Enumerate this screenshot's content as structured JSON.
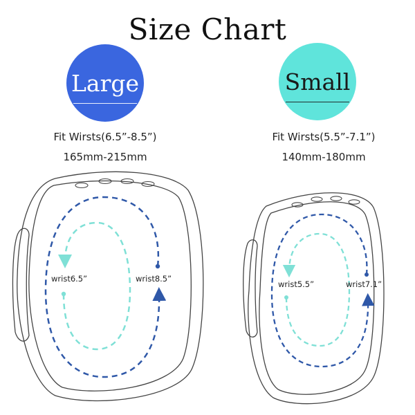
{
  "title": "Size Chart",
  "sizes": [
    {
      "name": "Large",
      "fit": "Fit Wirsts(6.5”-8.5”)",
      "mm": "165mm-215mm",
      "inner_label": "wrist6.5”",
      "outer_label": "wrist8.5”",
      "badge_color": "#3a66df"
    },
    {
      "name": "Small",
      "fit": "Fit Wirsts(5.5”-7.1”)",
      "mm": "140mm-180mm",
      "inner_label": "wrist5.5”",
      "outer_label": "wrist7.1”",
      "badge_color": "#5fe4db"
    }
  ],
  "colors": {
    "outer_loop": "#2f58a8",
    "inner_loop": "#7fe0d6",
    "outline": "#444444"
  }
}
